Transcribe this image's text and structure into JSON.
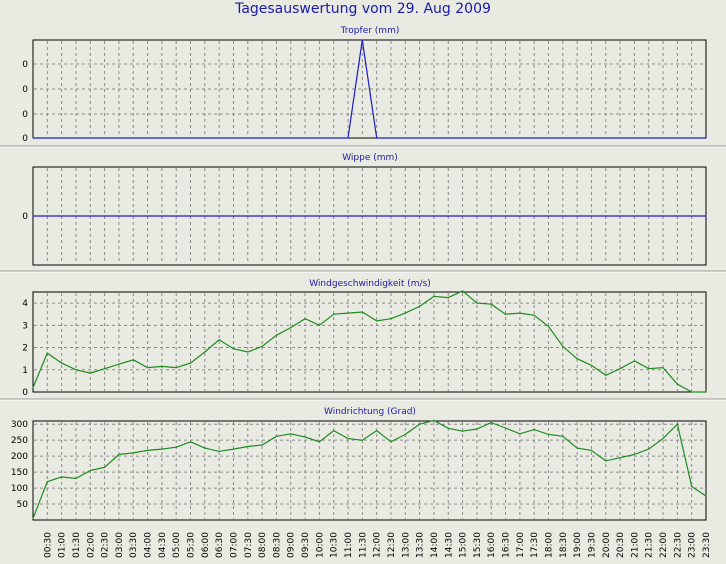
{
  "title": "Tagesauswertung vom 29. Aug 2009",
  "colors": {
    "rain": "#1c1cc8",
    "wind": "#1e8c1e",
    "title": "#1a1aa6",
    "background": "#e9ebe3"
  },
  "time_labels": [
    "00:30",
    "01:00",
    "01:30",
    "02:00",
    "02:30",
    "03:00",
    "03:30",
    "04:00",
    "04:30",
    "05:00",
    "05:30",
    "06:00",
    "06:30",
    "07:00",
    "07:30",
    "08:00",
    "08:30",
    "09:00",
    "09:30",
    "10:00",
    "10:30",
    "11:00",
    "11:30",
    "12:00",
    "12:30",
    "13:00",
    "13:30",
    "14:00",
    "14:30",
    "15:00",
    "15:30",
    "16:00",
    "16:30",
    "17:00",
    "17:30",
    "18:00",
    "18:30",
    "19:00",
    "19:30",
    "20:00",
    "20:30",
    "21:00",
    "21:30",
    "22:00",
    "22:30",
    "23:00",
    "23:30"
  ],
  "chart_data": [
    {
      "type": "line",
      "title": "Tropfer (mm)",
      "yticks": [
        "0",
        "0",
        "0",
        "0"
      ],
      "ylim": [
        0,
        4
      ],
      "grid": true,
      "x": [
        "00:00",
        "11:00",
        "11:30",
        "12:00",
        "23:30"
      ],
      "values": [
        0,
        0,
        4,
        0,
        0
      ]
    },
    {
      "type": "line",
      "title": "Wippe (mm)",
      "yticks": [
        "0"
      ],
      "ylim": [
        -1,
        1
      ],
      "grid": true,
      "x": [
        "00:00",
        "23:30"
      ],
      "values": [
        0,
        0
      ]
    },
    {
      "type": "line",
      "title": "Windgeschwindigkeit (m/s)",
      "yticks": [
        "0",
        "1",
        "2",
        "3",
        "4"
      ],
      "ylim": [
        0,
        4.5
      ],
      "grid": true,
      "x_start": "00:00",
      "x_step_minutes": 30,
      "values": [
        0.2,
        1.75,
        1.3,
        1.0,
        0.85,
        1.05,
        1.25,
        1.45,
        1.1,
        1.15,
        1.1,
        1.3,
        1.8,
        2.35,
        1.95,
        1.8,
        2.05,
        2.55,
        2.9,
        3.3,
        3.0,
        3.5,
        3.55,
        3.6,
        3.2,
        3.3,
        3.55,
        3.85,
        4.3,
        4.25,
        4.55,
        4.0,
        3.95,
        3.5,
        3.55,
        3.45,
        2.95,
        2.05,
        1.5,
        1.2,
        0.75,
        1.05,
        1.4,
        1.05,
        1.1,
        0.35,
        0.0,
        0.0
      ]
    },
    {
      "type": "line",
      "title": "Windrichtung (Grad)",
      "yticks": [
        "50",
        "100",
        "150",
        "200",
        "250",
        "300"
      ],
      "ylim": [
        0,
        310
      ],
      "grid": true,
      "x_start": "00:00",
      "x_step_minutes": 30,
      "values": [
        5,
        120,
        135,
        130,
        155,
        165,
        205,
        210,
        218,
        222,
        228,
        245,
        225,
        215,
        222,
        230,
        235,
        262,
        270,
        260,
        245,
        280,
        255,
        250,
        280,
        245,
        268,
        300,
        312,
        287,
        278,
        285,
        305,
        288,
        270,
        283,
        268,
        262,
        225,
        218,
        185,
        195,
        205,
        222,
        255,
        300,
        105,
        75
      ]
    }
  ]
}
